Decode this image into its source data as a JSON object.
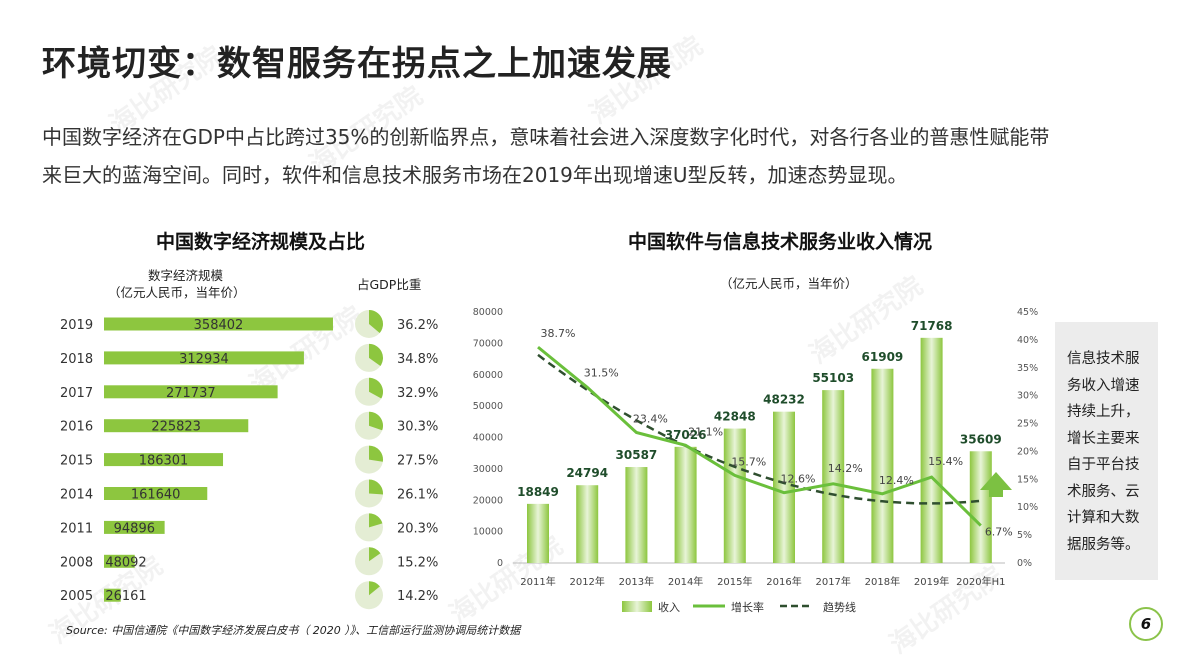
{
  "title": "环境切变：数智服务在拐点之上加速发展",
  "subtitle": {
    "line1": "中国数字经济在GDP中占比跨过35%的创新临界点，意味着社会进入深度数字化时代，对各行各业的普惠性赋能带",
    "line2": "来巨大的蓝海空间。同时，软件和信息技术服务市场在2019年出现增速U型反转，加速态势显现。"
  },
  "watermark_text": "海比研究院",
  "colors": {
    "bar_green": "#8dc63f",
    "line_green": "#6abf3b",
    "trend": "#2f4f2f",
    "pie_bg": "#e4edd4",
    "pie_fill": "#8dc63f"
  },
  "chart_data": [
    {
      "type": "bar",
      "title": "中国数字经济规模及占比",
      "value_label_line1": "数字经济规模",
      "value_label_line2": "（亿元人民币，当年价）",
      "share_label": "占GDP比重",
      "categories": [
        "2019",
        "2018",
        "2017",
        "2016",
        "2015",
        "2014",
        "2011",
        "2008",
        "2005"
      ],
      "values": [
        358402,
        312934,
        271737,
        225823,
        186301,
        161640,
        94896,
        48092,
        26161
      ],
      "value_labels": [
        "358402",
        "312934",
        "271737",
        "225823",
        "186301",
        "161640",
        "94896",
        "48092",
        "26161"
      ],
      "share_values": [
        36.2,
        34.8,
        32.9,
        30.3,
        27.5,
        26.1,
        20.3,
        15.2,
        14.2
      ],
      "share_labels": [
        "36.2%",
        "34.8%",
        "32.9%",
        "30.3%",
        "27.5%",
        "26.1%",
        "20.3%",
        "15.2%",
        "14.2%"
      ],
      "orientation": "horizontal"
    },
    {
      "type": "bar",
      "title": "中国软件与信息技术服务业收入情况",
      "unit_label": "（亿元人民币，当年价）",
      "categories": [
        "2011年",
        "2012年",
        "2013年",
        "2014年",
        "2015年",
        "2016年",
        "2017年",
        "2018年",
        "2019年",
        "2020年H1"
      ],
      "series": [
        {
          "name": "收入",
          "type": "bar",
          "values": [
            18849,
            24794,
            30587,
            37026,
            42848,
            48232,
            55103,
            61909,
            71768,
            35609
          ],
          "labels": [
            "18849",
            "24794",
            "30587",
            "37026",
            "42848",
            "48232",
            "55103",
            "61909",
            "71768",
            "35609"
          ]
        },
        {
          "name": "增长率",
          "type": "line",
          "axis": "right",
          "values": [
            38.7,
            31.5,
            23.4,
            21.1,
            15.7,
            12.6,
            14.2,
            12.4,
            15.4,
            6.7
          ],
          "labels": [
            "38.7%",
            "31.5%",
            "23.4%",
            "21.1%",
            "15.7%",
            "12.6%",
            "14.2%",
            "12.4%",
            "15.4%",
            "6.7%"
          ]
        },
        {
          "name": "趋势线",
          "type": "line-dashed",
          "axis": "right"
        }
      ],
      "y_left": {
        "min": 0,
        "max": 80000,
        "ticks": [
          "0",
          "10000",
          "20000",
          "30000",
          "40000",
          "50000",
          "60000",
          "70000",
          "80000"
        ]
      },
      "y_right": {
        "min": 0,
        "max": 45,
        "ticks": [
          "0%",
          "5%",
          "10%",
          "15%",
          "20%",
          "25%",
          "30%",
          "35%",
          "40%",
          "45%"
        ]
      },
      "legend_position": "bottom"
    }
  ],
  "note": "信息技术服务收入增速持续上升，增长主要来自于平台技术服务、云计算和大数据服务等。",
  "source": "Source: 中国信通院《中国数字经济发展白皮书（ 2020 ）》、工信部运行监测协调局统计数据",
  "page_number": "6"
}
